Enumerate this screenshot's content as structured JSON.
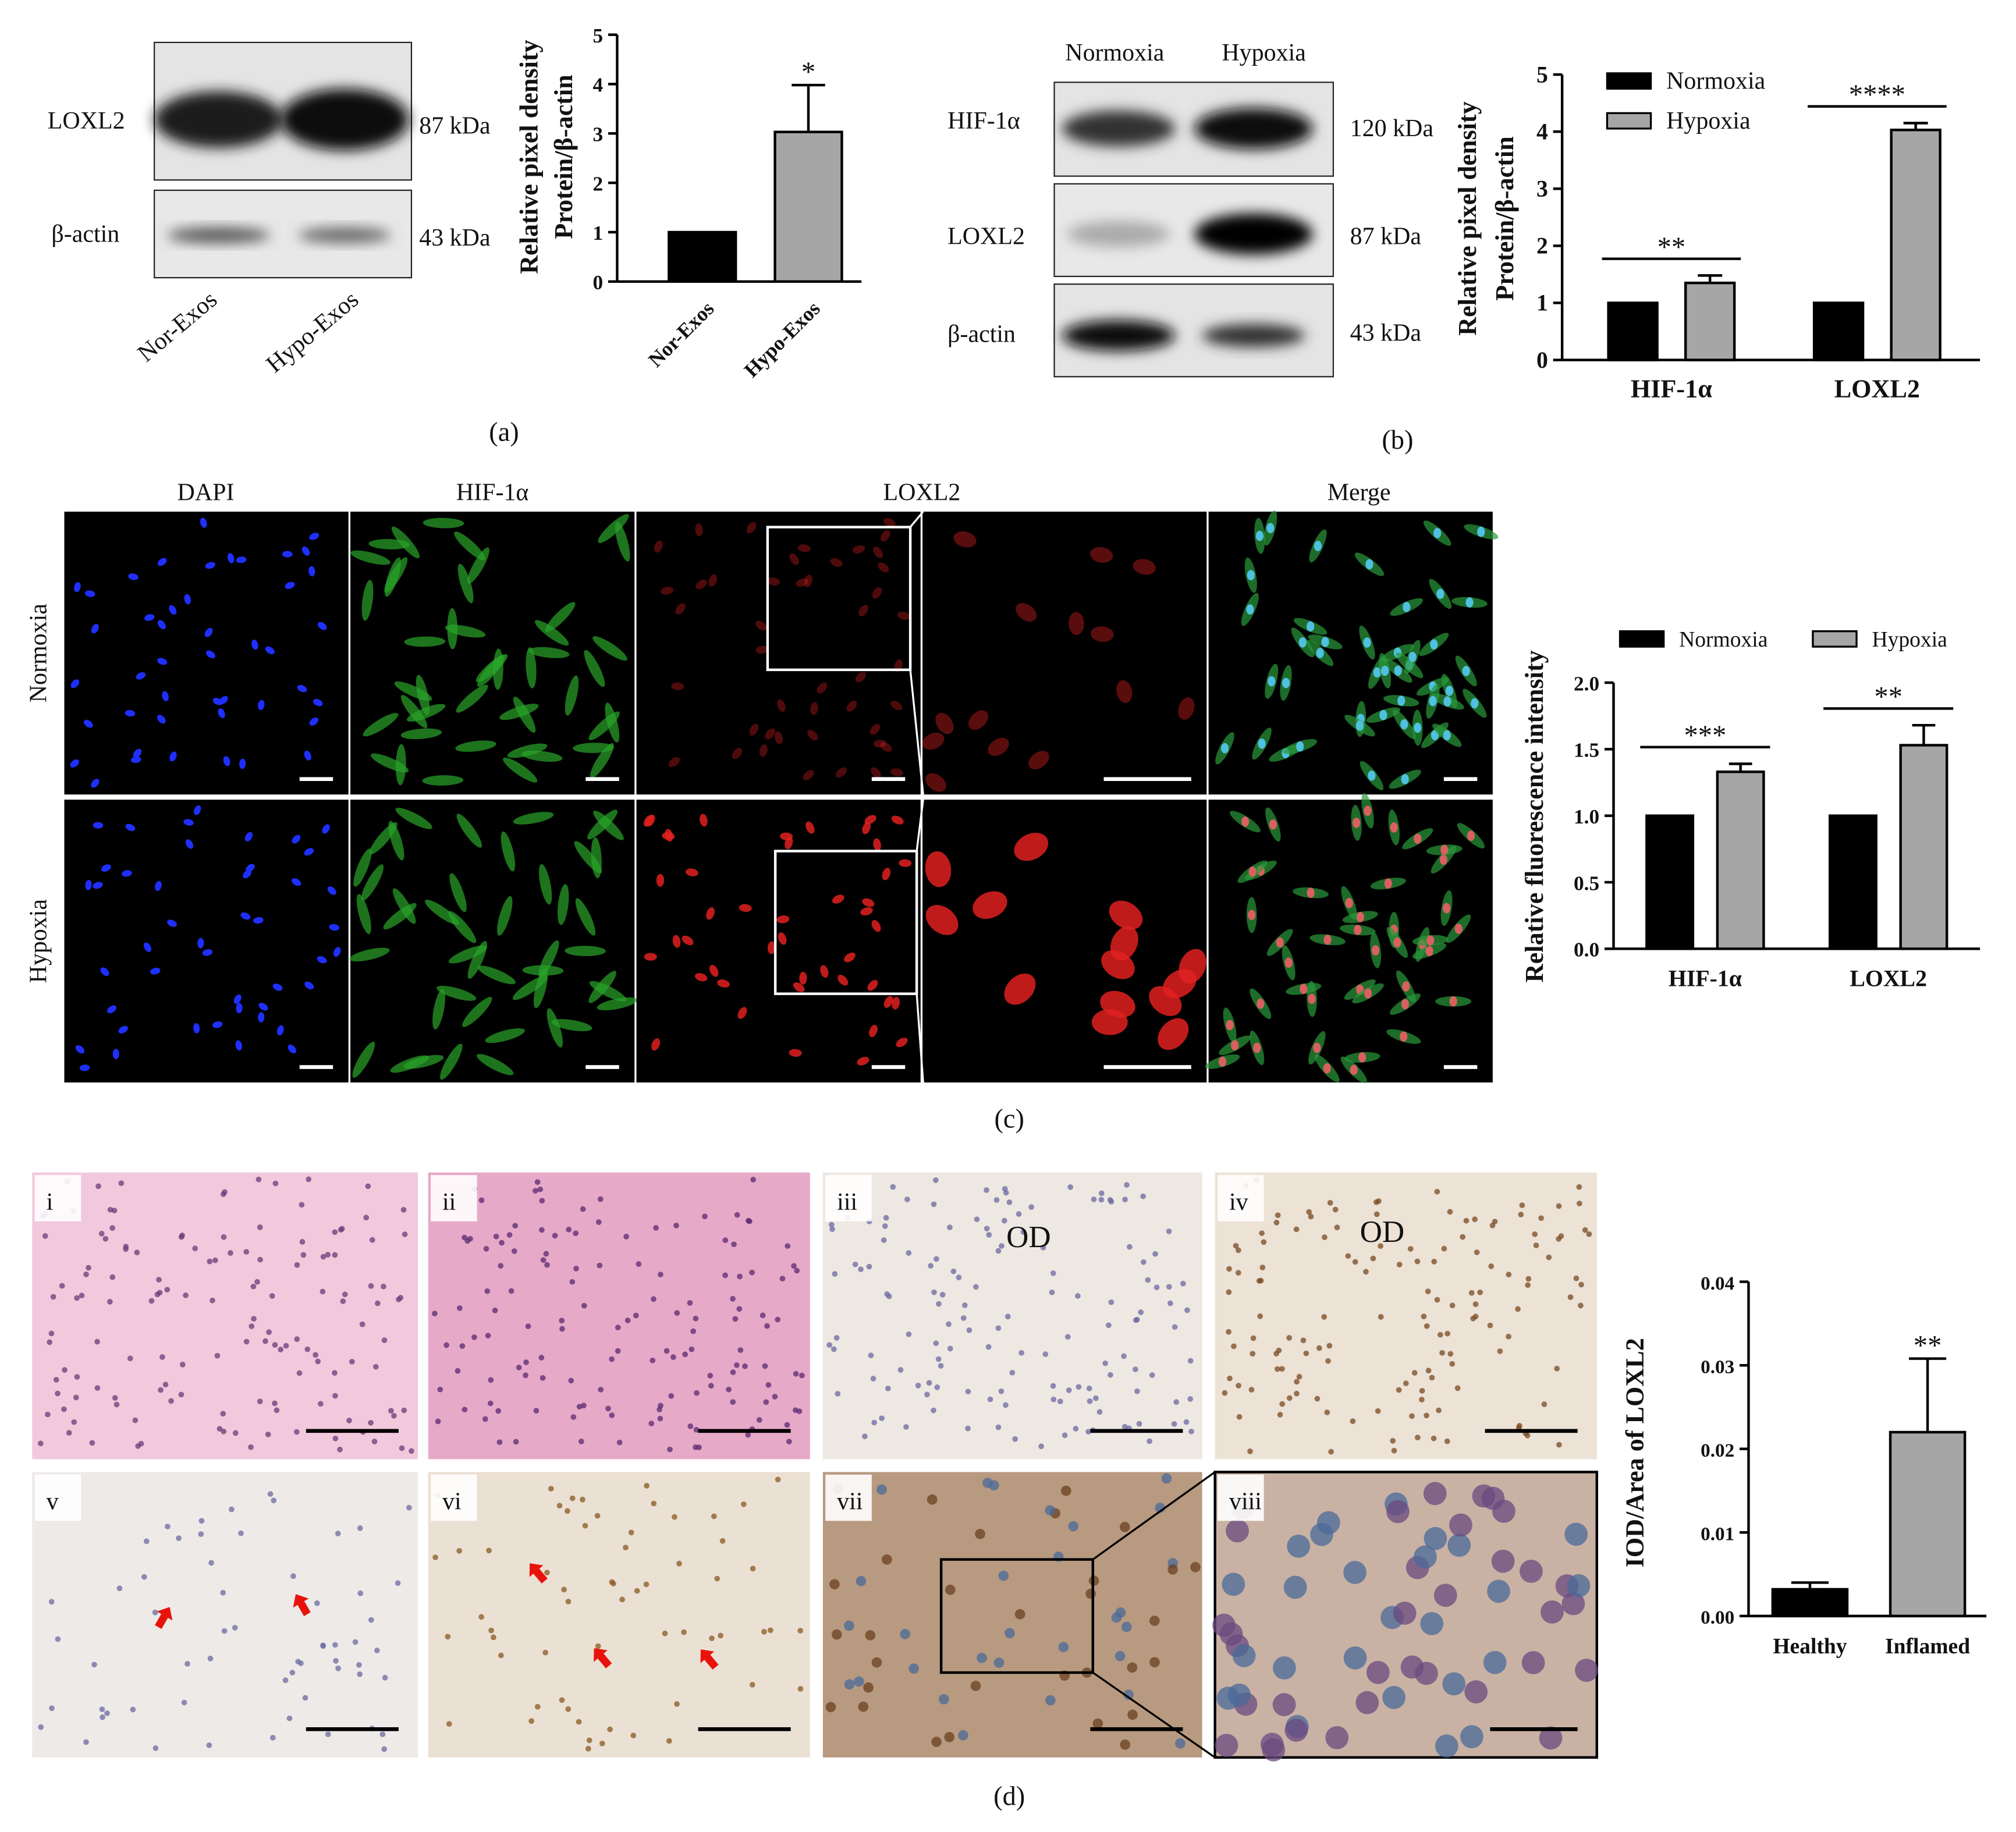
{
  "chart_data": [
    {
      "type": "bar",
      "categories": [
        "Nor-Exos",
        "Hypo-Exos"
      ],
      "values": [
        1,
        3.03
      ],
      "errors": [
        null,
        0.95
      ],
      "colors": [
        "#000000",
        "#a6a6a6"
      ],
      "y_label": [
        "Relative pixel density",
        "Protein/β-actin"
      ],
      "ylim": [
        0,
        5
      ],
      "yticks": [
        0,
        1,
        2,
        3,
        4,
        5
      ],
      "significance": [
        null,
        "*"
      ]
    },
    {
      "type": "bar",
      "categories": [
        "HIF-1α",
        "LOXL2"
      ],
      "series": [
        {
          "name": "Normoxia",
          "color": "#000000",
          "values": [
            1,
            1
          ]
        },
        {
          "name": "Hypoxia",
          "color": "#a6a6a6",
          "values": [
            1.35,
            4.03
          ],
          "errors": [
            0.13,
            0.12
          ]
        }
      ],
      "y_label": [
        "Relative pixel density",
        "Protein/β-actin"
      ],
      "ylim": [
        0,
        5
      ],
      "yticks": [
        0,
        1,
        2,
        3,
        4,
        5
      ],
      "legend": "top-left",
      "significance": [
        "**",
        "****"
      ]
    },
    {
      "type": "bar",
      "categories": [
        "HIF-1α",
        "LOXL2"
      ],
      "series": [
        {
          "name": "Normoxia",
          "color": "#000000",
          "values": [
            1,
            1
          ]
        },
        {
          "name": "Hypoxia",
          "color": "#a6a6a6",
          "values": [
            1.33,
            1.53
          ],
          "errors": [
            0.06,
            0.15
          ]
        }
      ],
      "y_label": "Relative fluorescence intensity",
      "ylim": [
        0,
        2
      ],
      "yticks": [
        {
          "value": 0,
          "label": "0.0"
        },
        0.5,
        {
          "value": 1,
          "label": "1.0"
        },
        1.5,
        {
          "value": 2,
          "label": "2.0"
        }
      ],
      "legend": "top",
      "significance": [
        "***",
        "**"
      ]
    },
    {
      "type": "bar",
      "categories": [
        "Healthy",
        "Inflamed"
      ],
      "values": [
        0.0032,
        0.022
      ],
      "errors": [
        0.0008,
        0.0088
      ],
      "colors": [
        "#000000",
        "#a6a6a6"
      ],
      "y_label": "IOD/Area of LOXL2",
      "ylim": [
        0,
        0.04
      ],
      "yticks": [
        {
          "value": 0,
          "label": "0.00"
        },
        0.01,
        0.02,
        0.03,
        0.04
      ],
      "significance": [
        null,
        "**"
      ]
    }
  ],
  "panel_labels": [
    "(a)",
    "(b)",
    "(c)",
    "(d)"
  ],
  "blot_a": {
    "rows": [
      "LOXL2",
      "β-actin"
    ],
    "sizes": [
      "87 kDa",
      "43 kDa"
    ],
    "lanes": [
      "Nor-Exos",
      "Hypo-Exos"
    ]
  },
  "blot_b": {
    "lanes": [
      "Normoxia",
      "Hypoxia"
    ],
    "rows": [
      "HIF-1α",
      "LOXL2",
      "β-actin"
    ],
    "sizes": [
      "120 kDa",
      "87 kDa",
      "43 kDa"
    ]
  },
  "fluorescence": {
    "columns": [
      "DAPI",
      "HIF-1α",
      "LOXL2",
      "Merge"
    ],
    "rows": [
      "Normoxia",
      "Hypoxia"
    ]
  },
  "histology": {
    "panels": [
      "i",
      "ii",
      "iii",
      "iv",
      "v",
      "vi",
      "vii",
      "viii"
    ],
    "annotations": [
      "OD",
      "OD"
    ]
  }
}
